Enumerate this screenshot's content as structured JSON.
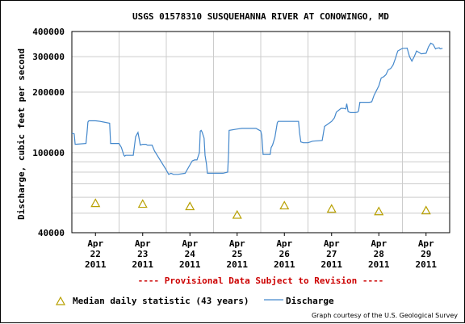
{
  "chart_data": {
    "type": "line",
    "title": "USGS 01578310 SUSQUEHANNA RIVER AT CONOWINGO, MD",
    "ylabel": "Discharge, cubic feet per second",
    "yscale": "log",
    "ylim": [
      40000,
      400000
    ],
    "y_ticks": [
      {
        "value": 40000,
        "label": "40000"
      },
      {
        "value": 100000,
        "label": "100000"
      },
      {
        "value": 200000,
        "label": "200000"
      },
      {
        "value": 300000,
        "label": "300000"
      },
      {
        "value": 400000,
        "label": "400000"
      }
    ],
    "y_minor_grid": [
      50000,
      60000,
      70000,
      80000,
      90000
    ],
    "xlim": [
      0,
      8
    ],
    "x_ticks": [
      {
        "pos": 0.5,
        "lines": [
          "Apr",
          "22",
          "2011"
        ]
      },
      {
        "pos": 1.5,
        "lines": [
          "Apr",
          "23",
          "2011"
        ]
      },
      {
        "pos": 2.5,
        "lines": [
          "Apr",
          "24",
          "2011"
        ]
      },
      {
        "pos": 3.5,
        "lines": [
          "Apr",
          "25",
          "2011"
        ]
      },
      {
        "pos": 4.5,
        "lines": [
          "Apr",
          "26",
          "2011"
        ]
      },
      {
        "pos": 5.5,
        "lines": [
          "Apr",
          "27",
          "2011"
        ]
      },
      {
        "pos": 6.5,
        "lines": [
          "Apr",
          "28",
          "2011"
        ]
      },
      {
        "pos": 7.5,
        "lines": [
          "Apr",
          "29",
          "2011"
        ]
      }
    ],
    "grid": true,
    "colors": {
      "discharge": "#4488cc",
      "median": "#b8a000",
      "provisional": "#cc0000",
      "grid": "#cccccc"
    },
    "series": [
      {
        "name": "Discharge",
        "kind": "line",
        "x": [
          0,
          0.05,
          0.07,
          0.3,
          0.32,
          0.34,
          0.36,
          0.5,
          0.6,
          0.8,
          0.82,
          0.84,
          1.0,
          1.05,
          1.1,
          1.12,
          1.14,
          1.3,
          1.35,
          1.4,
          1.45,
          1.5,
          1.55,
          1.57,
          1.6,
          1.7,
          1.75,
          2.0,
          2.05,
          2.1,
          2.15,
          2.2,
          2.25,
          2.4,
          2.5,
          2.55,
          2.6,
          2.65,
          2.7,
          2.72,
          2.74,
          2.76,
          2.8,
          2.82,
          2.85,
          2.87,
          2.9,
          3.05,
          3.1,
          3.2,
          3.3,
          3.32,
          3.33,
          3.5,
          3.6,
          3.9,
          4.0,
          4.02,
          4.05,
          4.2,
          4.22,
          4.25,
          4.3,
          4.35,
          4.37,
          4.4,
          4.5,
          4.6,
          4.7,
          4.8,
          4.82,
          4.85,
          4.9,
          5.0,
          5.05,
          5.1,
          5.3,
          5.35,
          5.5,
          5.55,
          5.56,
          5.6,
          5.7,
          5.75,
          5.8,
          5.82,
          5.85,
          5.9,
          6.0,
          6.05,
          6.07,
          6.1,
          6.3,
          6.35,
          6.4,
          6.5,
          6.55,
          6.6,
          6.65,
          6.7,
          6.75,
          6.8,
          6.85,
          6.9,
          7.0,
          7.05,
          7.1,
          7.15,
          7.2,
          7.25,
          7.3,
          7.4,
          7.5,
          7.55,
          7.6,
          7.65,
          7.7,
          7.72,
          7.78,
          7.8,
          7.85
        ],
        "y": [
          125000,
          124000,
          110000,
          111000,
          124000,
          142000,
          144000,
          144000,
          143000,
          140000,
          111000,
          111000,
          111000,
          106000,
          97000,
          96000,
          97000,
          97000,
          120000,
          126000,
          109000,
          110000,
          110000,
          110000,
          109000,
          109000,
          102000,
          82000,
          78000,
          79000,
          78000,
          78000,
          78000,
          79000,
          87000,
          91000,
          92000,
          92000,
          100000,
          128000,
          129000,
          126000,
          118000,
          97000,
          88000,
          79000,
          79000,
          79000,
          79000,
          79000,
          80000,
          100000,
          129000,
          131000,
          132000,
          132000,
          128000,
          122000,
          98000,
          98000,
          106000,
          109000,
          119000,
          141000,
          143000,
          143000,
          143000,
          143000,
          143000,
          143000,
          126000,
          113000,
          112000,
          112000,
          113000,
          114000,
          115000,
          135000,
          143000,
          148000,
          149000,
          159000,
          166000,
          166000,
          165000,
          175000,
          160000,
          158000,
          158000,
          159000,
          161000,
          178000,
          178000,
          179000,
          193000,
          215000,
          235000,
          238000,
          244000,
          258000,
          262000,
          272000,
          293000,
          320000,
          330000,
          330000,
          331000,
          300000,
          285000,
          300000,
          320000,
          310000,
          312000,
          335000,
          350000,
          345000,
          328000,
          330000,
          332000,
          328000,
          330000
        ]
      },
      {
        "name": "Median daily statistic (43 years)",
        "kind": "marker",
        "x": [
          0.5,
          1.5,
          2.5,
          3.5,
          4.5,
          5.5,
          6.5,
          7.5
        ],
        "y": [
          56000,
          55500,
          54000,
          49000,
          54500,
          52500,
          51000,
          51500
        ]
      }
    ],
    "provisional_note": "---- Provisional Data Subject to Revision ----",
    "credit": "Graph courtesy of the U.S. Geological Survey"
  }
}
